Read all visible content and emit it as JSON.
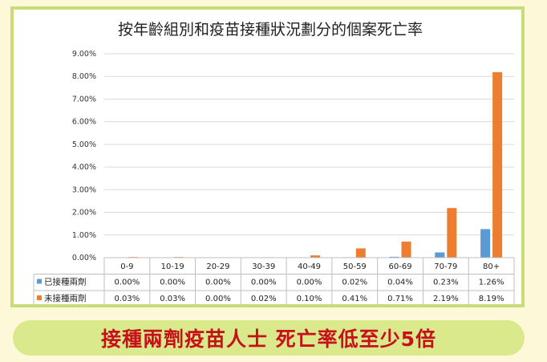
{
  "colors": {
    "vaccinated": "#5b9bd5",
    "unvaccinated": "#ed7d31",
    "frame": "#c7dd7a",
    "banner": "#d9e98c",
    "banner_text": "#c8101b"
  },
  "chart_data": {
    "type": "bar",
    "title": "按年齡組別和疫苗接種狀況劃分的個案死亡率",
    "categories": [
      "0-9",
      "10-19",
      "20-29",
      "30-39",
      "40-49",
      "50-59",
      "60-69",
      "70-79",
      "80+"
    ],
    "series": [
      {
        "name": "已接種兩劑",
        "values": [
          0.0,
          0.0,
          0.0,
          0.0,
          0.0,
          0.02,
          0.04,
          0.23,
          1.26
        ],
        "labels": [
          "0.00%",
          "0.00%",
          "0.00%",
          "0.00%",
          "0.00%",
          "0.02%",
          "0.04%",
          "0.23%",
          "1.26%"
        ]
      },
      {
        "name": "未接種兩劑",
        "values": [
          0.03,
          0.03,
          0.0,
          0.02,
          0.1,
          0.41,
          0.71,
          2.19,
          8.19
        ],
        "labels": [
          "0.03%",
          "0.03%",
          "0.00%",
          "0.02%",
          "0.10%",
          "0.41%",
          "0.71%",
          "2.19%",
          "8.19%"
        ]
      }
    ],
    "yticks": [
      "0.00%",
      "1.00%",
      "2.00%",
      "3.00%",
      "4.00%",
      "5.00%",
      "6.00%",
      "7.00%",
      "8.00%",
      "9.00%"
    ],
    "ylim": [
      0,
      9
    ],
    "grid": true,
    "legend": "data-table"
  },
  "banner": {
    "text": "接種兩劑疫苗人士 死亡率低至少5倍"
  }
}
